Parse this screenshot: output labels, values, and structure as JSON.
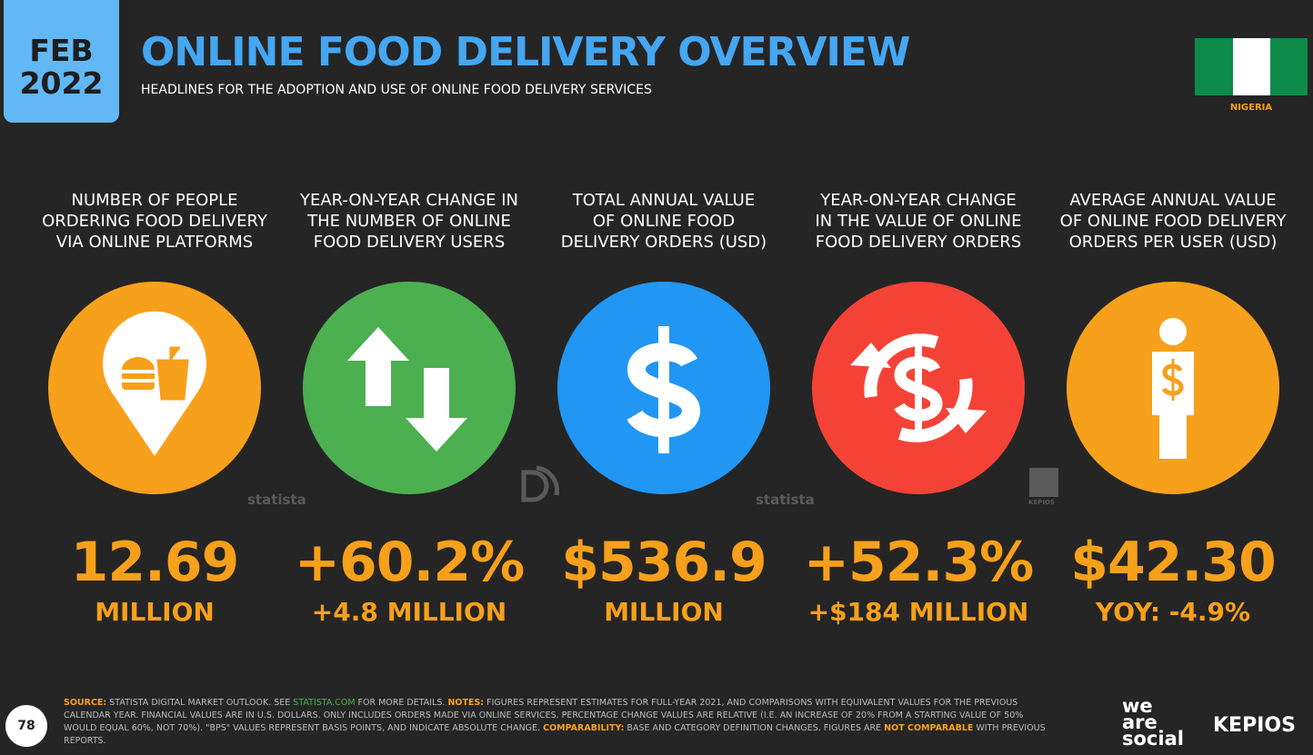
{
  "header": {
    "date_month": "FEB",
    "date_year": "2022",
    "title": "ONLINE FOOD DELIVERY OVERVIEW",
    "subtitle": "HEADLINES FOR THE ADOPTION AND USE OF ONLINE FOOD DELIVERY SERVICES",
    "country": "NIGERIA"
  },
  "cards": [
    {
      "label": [
        "NUMBER OF PEOPLE",
        "ORDERING FOOD DELIVERY",
        "VIA ONLINE PLATFORMS"
      ],
      "value": "12.69",
      "sub": "MILLION",
      "watermark": "statista"
    },
    {
      "label": [
        "YEAR-ON-YEAR CHANGE IN",
        "THE NUMBER OF ONLINE",
        "FOOD DELIVERY USERS"
      ],
      "value": "+60.2%",
      "sub": "+4.8 MILLION"
    },
    {
      "label": [
        "TOTAL ANNUAL VALUE",
        "OF ONLINE FOOD",
        "DELIVERY ORDERS (USD)"
      ],
      "value": "$536.9",
      "sub": "MILLION",
      "watermark": "statista"
    },
    {
      "label": [
        "YEAR-ON-YEAR CHANGE",
        "IN THE VALUE OF ONLINE",
        "FOOD DELIVERY ORDERS"
      ],
      "value": "+52.3%",
      "sub": "+$184 MILLION",
      "watermark": "KEPIOS"
    },
    {
      "label": [
        "AVERAGE ANNUAL VALUE",
        "OF ONLINE FOOD DELIVERY",
        "ORDERS PER USER (USD)"
      ],
      "value": "$42.30",
      "sub": "YOY: -4.9%"
    }
  ],
  "footer": {
    "page": "78",
    "segments": [
      "SOURCE:",
      " STATISTA DIGITAL MARKET OUTLOOK. SEE ",
      "STATISTA.COM",
      " FOR MORE DETAILS. ",
      "NOTES:",
      " FIGURES REPRESENT ESTIMATES FOR FULL-YEAR 2021, AND COMPARISONS WITH EQUIVALENT VALUES FOR THE PREVIOUS CALENDAR YEAR. FINANCIAL VALUES ARE IN U.S. DOLLARS. ONLY INCLUDES ORDERS MADE VIA ONLINE SERVICES. PERCENTAGE CHANGE VALUES ARE RELATIVE (I.E. AN INCREASE OF 20% FROM A STARTING VALUE OF 50% WOULD EQUAL 60%, NOT 70%). \"BPS\" VALUES REPRESENT BASIS POINTS, AND INDICATE ABSOLUTE CHANGE. ",
      "COMPARABILITY:",
      " BASE AND CATEGORY DEFINITION CHANGES. FIGURES ARE ",
      "NOT COMPARABLE",
      " WITH PREVIOUS REPORTS."
    ],
    "brand_1": [
      "we",
      "are",
      "social"
    ],
    "brand_2": "KEPIOS"
  }
}
